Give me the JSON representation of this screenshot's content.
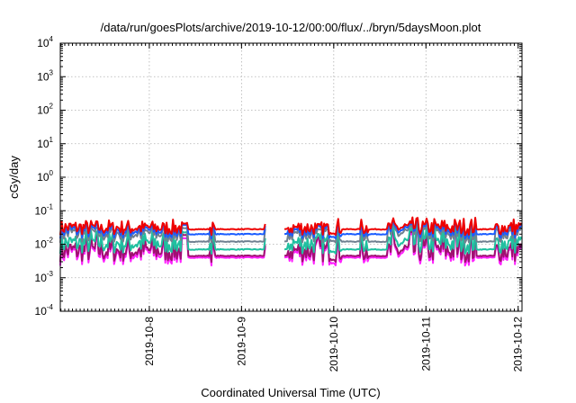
{
  "chart_data": {
    "type": "line",
    "title": "/data/run/goesPlots/archive/2019-10-12/00:00/flux/../bryn/5daysMoon.plot",
    "xlabel": "Coordinated Universal Time (UTC)",
    "ylabel": "cGy/day",
    "yscale": "log",
    "ylim": [
      0.0001,
      10000
    ],
    "xlim": [
      "2019-10-07T00:50",
      "2019-10-12T01:00"
    ],
    "grid": true,
    "y_ticks": [
      {
        "base": "10",
        "exp": "-4",
        "value": 0.0001
      },
      {
        "base": "10",
        "exp": "-3",
        "value": 0.001
      },
      {
        "base": "10",
        "exp": "-2",
        "value": 0.01
      },
      {
        "base": "10",
        "exp": "-1",
        "value": 0.1
      },
      {
        "base": "10",
        "exp": "0",
        "value": 1
      },
      {
        "base": "10",
        "exp": "1",
        "value": 10
      },
      {
        "base": "10",
        "exp": "2",
        "value": 100
      },
      {
        "base": "10",
        "exp": "3",
        "value": 1000
      },
      {
        "base": "10",
        "exp": "4",
        "value": 10000
      }
    ],
    "x_ticks": [
      "2019-10-8",
      "2019-10-9",
      "2019-10-10",
      "2019-10-11",
      "2019-10-12"
    ],
    "x_tick_dates": [
      "2019-10-08T00:00",
      "2019-10-09T00:00",
      "2019-10-10T00:00",
      "2019-10-11T00:00",
      "2019-10-12T00:00"
    ],
    "series": [
      {
        "color": "#ee0000",
        "baseline": 0.03,
        "quiet_level": 0.028,
        "spikes": [
          0.06,
          0.055,
          0.05,
          0.065,
          0.07
        ]
      },
      {
        "color": "#1a5cff",
        "baseline": 0.025,
        "quiet_level": 0.02,
        "spikes": [
          0.05,
          0.05,
          0.045,
          0.06,
          0.065
        ]
      },
      {
        "color": "#708090",
        "baseline": 0.02,
        "quiet_level": 0.012,
        "spikes": [
          0.04,
          0.04,
          0.035,
          0.05,
          0.06
        ]
      },
      {
        "color": "#20c0a0",
        "baseline": 0.01,
        "quiet_level": 0.007,
        "spikes": [
          0.03,
          0.03,
          0.025,
          0.04,
          0.05
        ]
      },
      {
        "color": "#a01070",
        "baseline": 0.006,
        "quiet_level": 0.0045,
        "spikes": [
          0.025,
          0.025,
          0.02,
          0.035,
          0.045
        ]
      },
      {
        "color": "#ff20ff",
        "baseline": 0.005,
        "quiet_level": 0.004,
        "spikes": [
          0.022,
          0.02,
          0.018,
          0.03,
          0.04
        ]
      }
    ],
    "quiet_intervals": [
      [
        "2019-10-08T10:00",
        "2019-10-08T15:30"
      ],
      [
        "2019-10-08T17:00",
        "2019-10-09T06:00"
      ],
      [
        "2019-10-09T09:00",
        "2019-10-09T12:00"
      ],
      [
        "2019-10-10T02:00",
        "2019-10-10T07:00"
      ],
      [
        "2019-10-10T09:00",
        "2019-10-10T14:00"
      ],
      [
        "2019-10-11T13:00",
        "2019-10-11T18:00"
      ]
    ],
    "data_gaps": [
      [
        "2019-10-09T06:30",
        "2019-10-09T11:00"
      ]
    ]
  }
}
